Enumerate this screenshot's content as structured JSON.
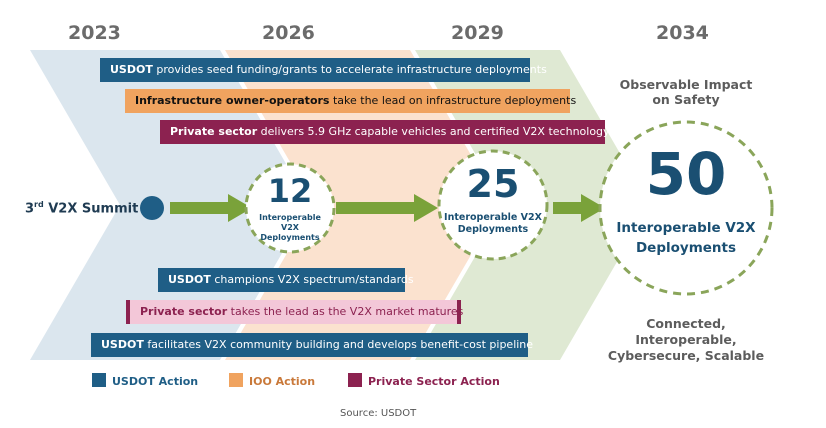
{
  "years": [
    "2023",
    "2026",
    "2029",
    "2034"
  ],
  "top_actions": [
    {
      "bold": "USDOT",
      "text": " provides seed funding/grants to accelerate infrastructure deployments",
      "type": "usdot"
    },
    {
      "bold": "Infrastructure owner-operators",
      "text": " take the lead on infrastructure deployments",
      "type": "ioo"
    },
    {
      "bold": "Private sector",
      "text": " delivers 5.9 GHz capable vehicles and certified V2X technology",
      "type": "private"
    }
  ],
  "bottom_actions": [
    {
      "bold": "USDOT",
      "text": " champions V2X spectrum/standards",
      "type": "usdot"
    },
    {
      "bold": "Private sector",
      "text": " takes the lead as the V2X market matures",
      "type": "private"
    },
    {
      "bold": "USDOT",
      "text": " facilitates V2X community building and develops benefit-cost pipeline",
      "type": "usdot"
    }
  ],
  "summit": {
    "prefix": "3",
    "sup": "rd",
    "suffix": " V2X Summit"
  },
  "milestones": [
    {
      "number": "12",
      "label_line1": "Interoperable V2X",
      "label_line2": "Deployments"
    },
    {
      "number": "25",
      "label_line1": "Interoperable V2X",
      "label_line2": "Deployments"
    },
    {
      "number": "50",
      "label_line1": "Interoperable V2X",
      "label_line2": "Deployments"
    }
  ],
  "impact_heading": {
    "line1": "Observable Impact",
    "line2": "on Safety"
  },
  "outcome": {
    "line1": "Connected, Interoperable,",
    "line2": "Cybersecure, Scalable"
  },
  "legend": [
    {
      "label": "USDOT Action",
      "color": "#1f5e86"
    },
    {
      "label": "IOO Action",
      "color": "#f0a35f"
    },
    {
      "label": "Private Sector Action",
      "color": "#8c2250"
    }
  ],
  "source": "Source: USDOT",
  "colors": {
    "usdot": "#1f5e86",
    "ioo": "#f0a35f",
    "private": "#8c2250",
    "milestone_text": "#1a4f72",
    "arrow_green": "#7aa23a",
    "dashed_ring": "#8aa55a"
  }
}
